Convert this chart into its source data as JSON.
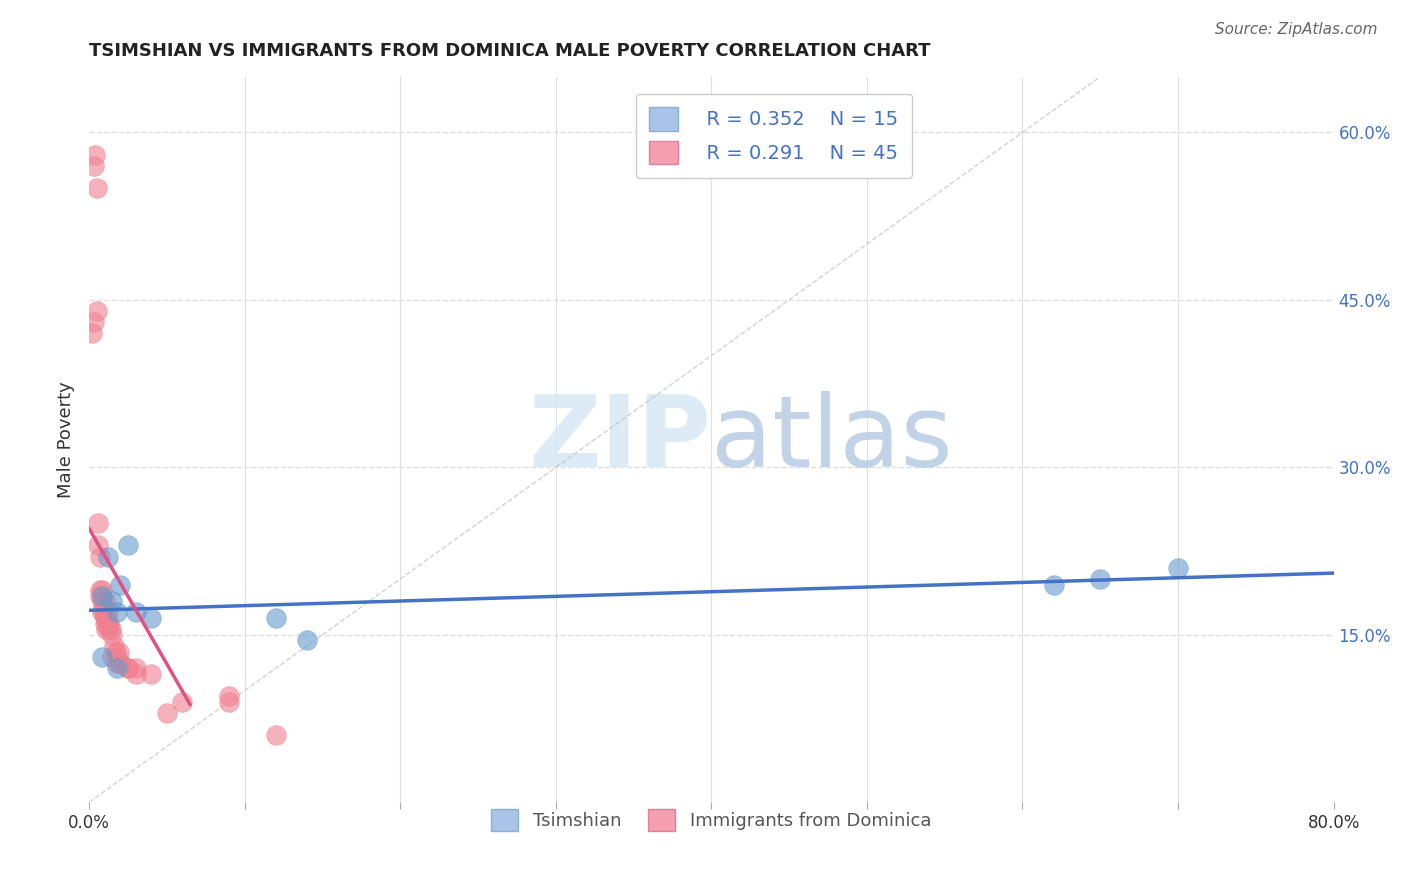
{
  "title": "TSIMSHIAN VS IMMIGRANTS FROM DOMINICA MALE POVERTY CORRELATION CHART",
  "source": "Source: ZipAtlas.com",
  "ylabel": "Male Poverty",
  "xlim": [
    0,
    0.8
  ],
  "ylim": [
    0,
    0.65
  ],
  "y_ticks_right": [
    0.15,
    0.3,
    0.45,
    0.6
  ],
  "y_tick_labels_right": [
    "15.0%",
    "30.0%",
    "45.0%",
    "60.0%"
  ],
  "background_color": "#ffffff",
  "grid_color": "#e0e0e0",
  "legend_R1": "R = 0.352",
  "legend_N1": "N = 15",
  "legend_R2": "R = 0.291",
  "legend_N2": "N = 45",
  "tsimshian_color": "#aac4e8",
  "dominica_color": "#f4a0b0",
  "tsimshian_line_color": "#4472c4",
  "dominica_line_color": "#e05080",
  "tsimshian_scatter_color": "#6699cc",
  "dominica_scatter_color": "#f08090",
  "tsimshian_x": [
    0.008,
    0.008,
    0.012,
    0.015,
    0.018,
    0.018,
    0.02,
    0.025,
    0.03,
    0.04,
    0.12,
    0.14,
    0.62,
    0.65,
    0.7
  ],
  "tsimshian_y": [
    0.185,
    0.13,
    0.22,
    0.18,
    0.17,
    0.12,
    0.195,
    0.23,
    0.17,
    0.165,
    0.165,
    0.145,
    0.195,
    0.2,
    0.21
  ],
  "dominica_x": [
    0.002,
    0.003,
    0.003,
    0.004,
    0.005,
    0.005,
    0.006,
    0.006,
    0.007,
    0.007,
    0.007,
    0.008,
    0.008,
    0.008,
    0.009,
    0.009,
    0.01,
    0.01,
    0.01,
    0.011,
    0.011,
    0.012,
    0.012,
    0.013,
    0.013,
    0.014,
    0.015,
    0.015,
    0.016,
    0.017,
    0.018,
    0.018,
    0.019,
    0.02,
    0.02,
    0.025,
    0.025,
    0.03,
    0.03,
    0.04,
    0.05,
    0.06,
    0.09,
    0.09,
    0.12
  ],
  "dominica_y": [
    0.42,
    0.43,
    0.57,
    0.58,
    0.55,
    0.44,
    0.23,
    0.25,
    0.22,
    0.185,
    0.19,
    0.17,
    0.18,
    0.19,
    0.17,
    0.175,
    0.165,
    0.16,
    0.18,
    0.155,
    0.165,
    0.16,
    0.17,
    0.155,
    0.16,
    0.155,
    0.15,
    0.13,
    0.14,
    0.135,
    0.125,
    0.13,
    0.135,
    0.125,
    0.125,
    0.12,
    0.12,
    0.12,
    0.115,
    0.115,
    0.08,
    0.09,
    0.09,
    0.095,
    0.06
  ]
}
